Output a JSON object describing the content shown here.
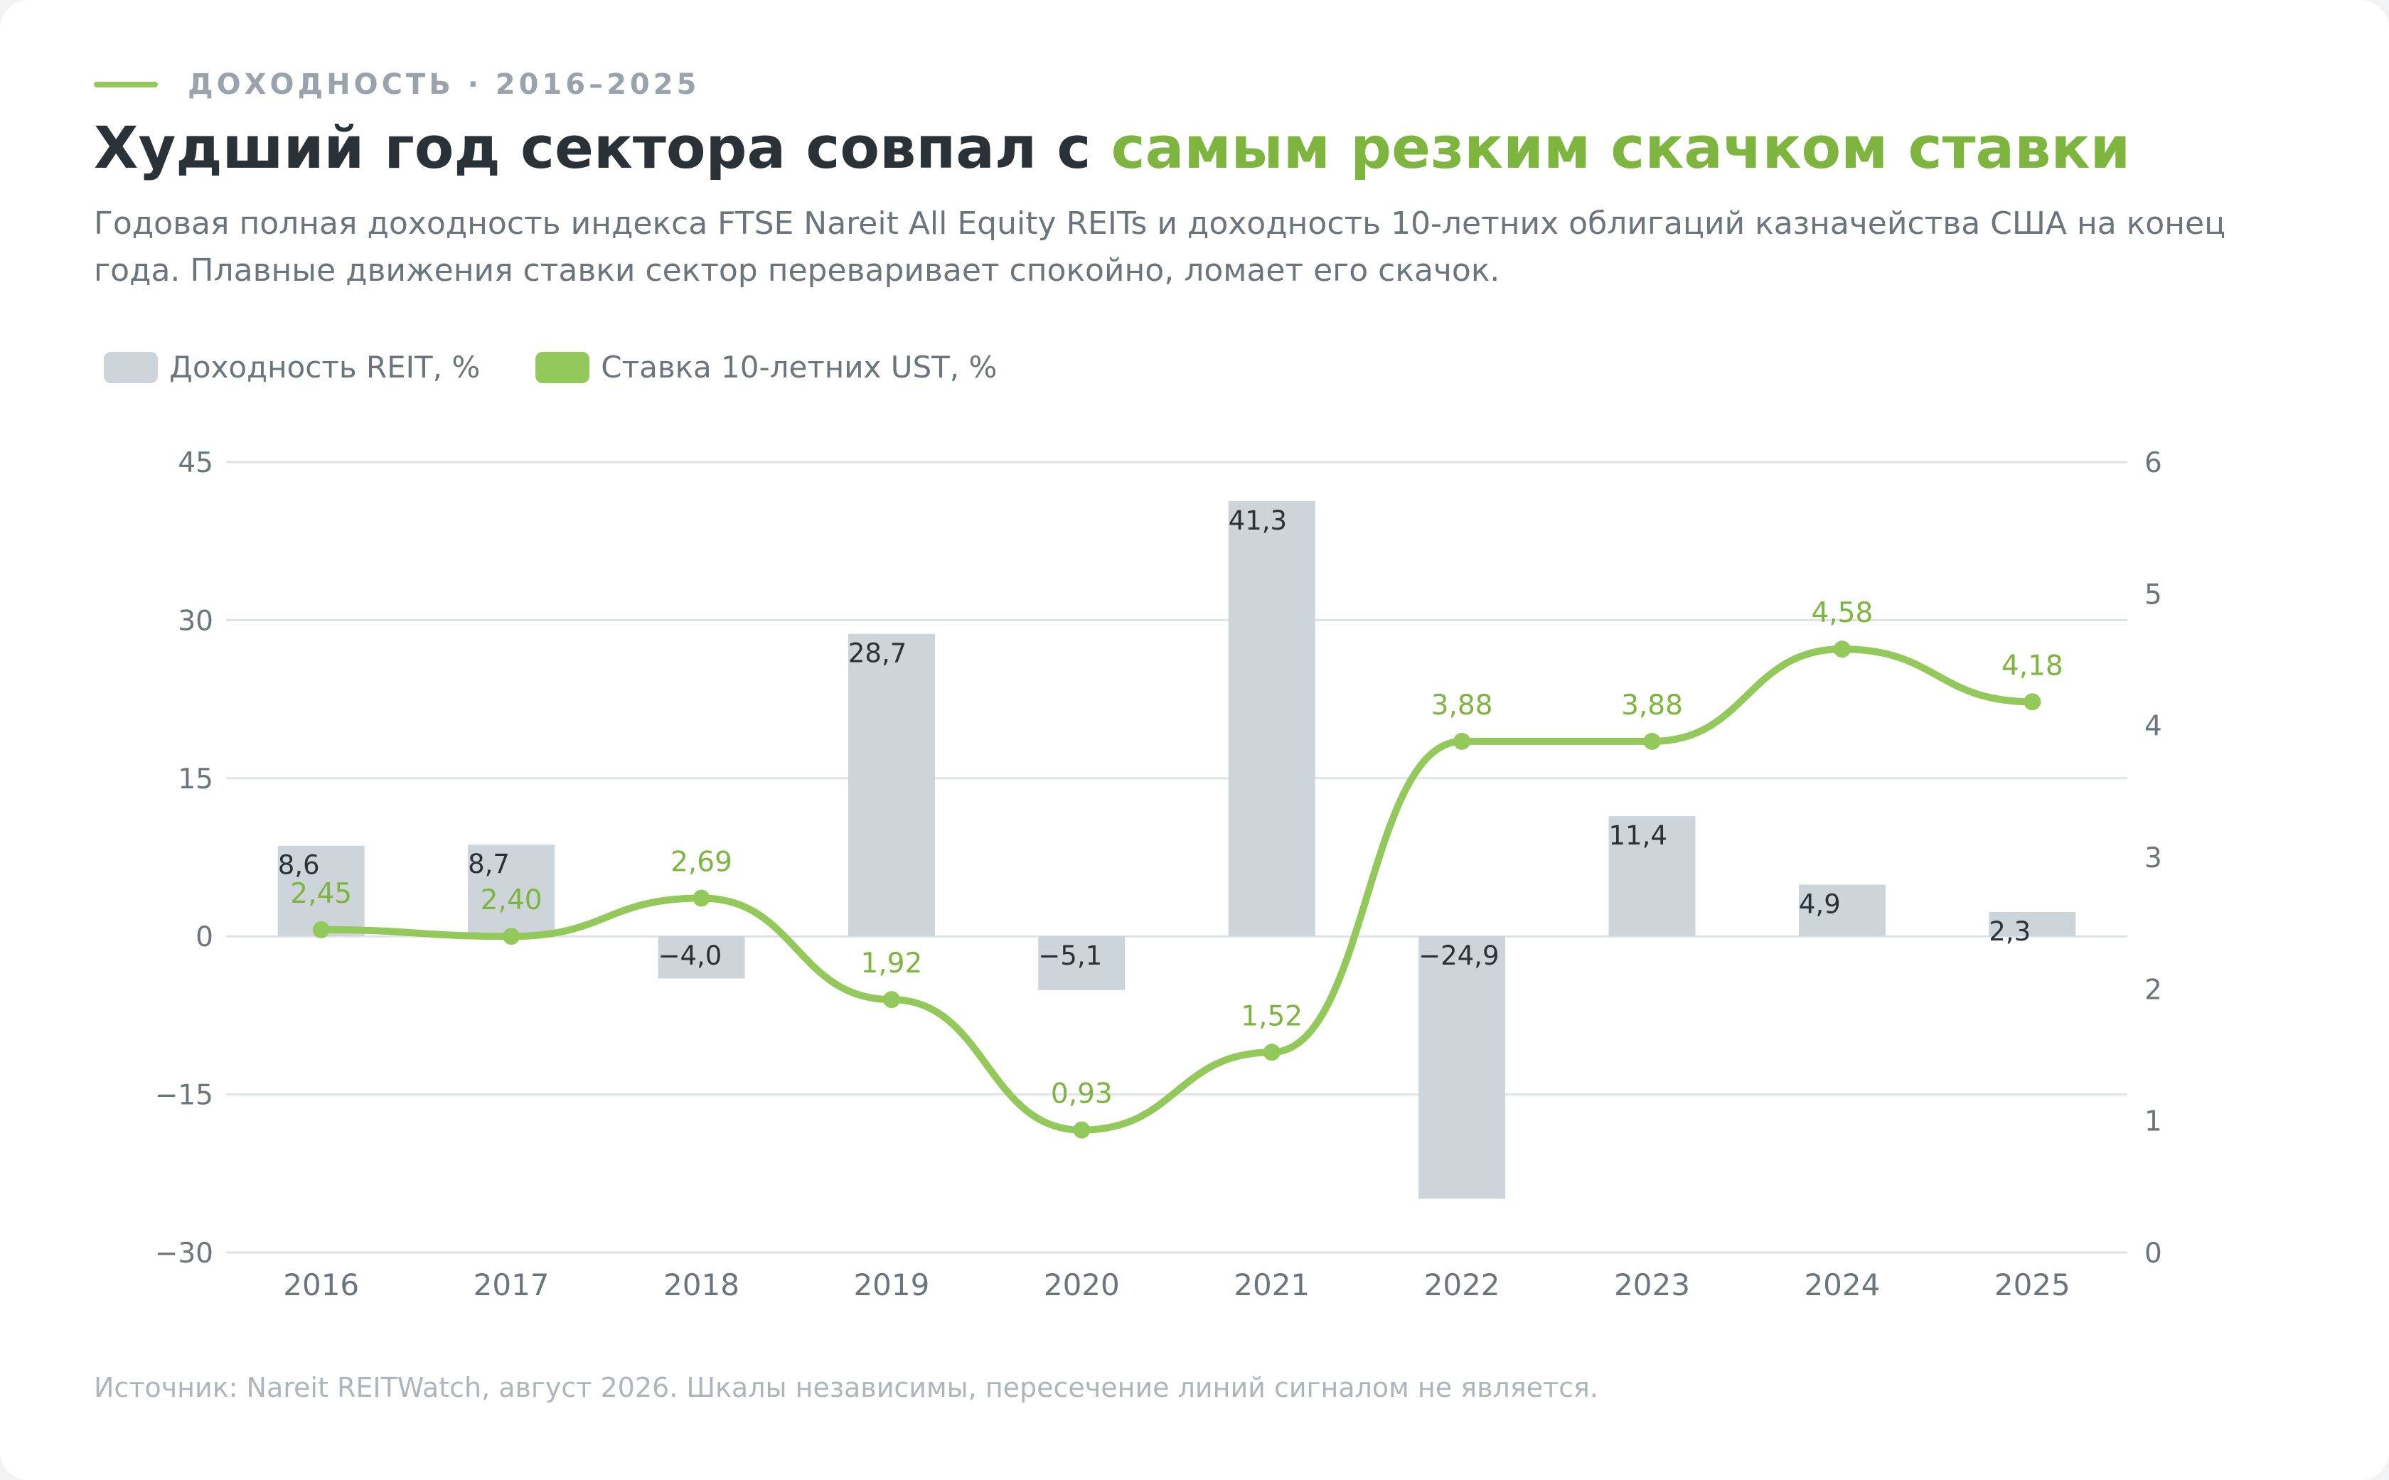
{
  "kicker": "ДОХОДНОСТЬ · 2016–2025",
  "title": {
    "part1": "Худший год сектора совпал с ",
    "part2": "самым резким скачком ставки"
  },
  "subtitle": "Годовая полная доходность индекса FTSE Nareit All Equity REITs и доходность 10-летних облигаций казначейства США на конец года. Плавные движения ставки сектор переваривает спокойно, ломает его скачок.",
  "footnote": "Источник: Nareit REITWatch, август 2026. Шкалы независимы, пересечение линий сигналом не является.",
  "colors": {
    "accent": "#93c95a",
    "accent_text": "#7db53e",
    "bar": "#cdd4da",
    "grid": "#dfe3e6",
    "title": "#2a3238",
    "muted": "#6b757c"
  },
  "chart_data": {
    "type": "bar+line",
    "categories": [
      "2016",
      "2017",
      "2018",
      "2019",
      "2020",
      "2021",
      "2022",
      "2023",
      "2024",
      "2025"
    ],
    "series": [
      {
        "name": "Доходность REIT, %",
        "type": "bar",
        "axis": "left",
        "values": [
          8.6,
          8.7,
          -4.0,
          28.7,
          -5.1,
          41.3,
          -24.9,
          11.4,
          4.9,
          2.3
        ],
        "labels": [
          "8,6",
          "8,7",
          "−4,0",
          "28,7",
          "−5,1",
          "41,3",
          "−24,9",
          "11,4",
          "4,9",
          "2,3"
        ]
      },
      {
        "name": "Ставка 10-летних UST, %",
        "type": "line",
        "axis": "right",
        "values": [
          2.45,
          2.4,
          2.69,
          1.92,
          0.93,
          1.52,
          3.88,
          3.88,
          4.58,
          4.18
        ],
        "labels": [
          "2,45",
          "2,40",
          "2,69",
          "1,92",
          "0,93",
          "1,52",
          "3,88",
          "3,88",
          "4,58",
          "4,18"
        ]
      }
    ],
    "y_left": {
      "min": -30,
      "max": 45,
      "ticks": [
        45,
        30,
        15,
        0,
        -15,
        -30
      ],
      "tick_labels": [
        "45",
        "30",
        "15",
        "0",
        "−15",
        "−30"
      ]
    },
    "y_right": {
      "min": 0,
      "max": 6,
      "ticks": [
        6,
        5,
        4,
        3,
        2,
        1,
        0
      ],
      "tick_labels": [
        "6",
        "5",
        "4",
        "3",
        "2",
        "1",
        "0"
      ]
    },
    "grid": true,
    "legend_position": "top-left"
  }
}
